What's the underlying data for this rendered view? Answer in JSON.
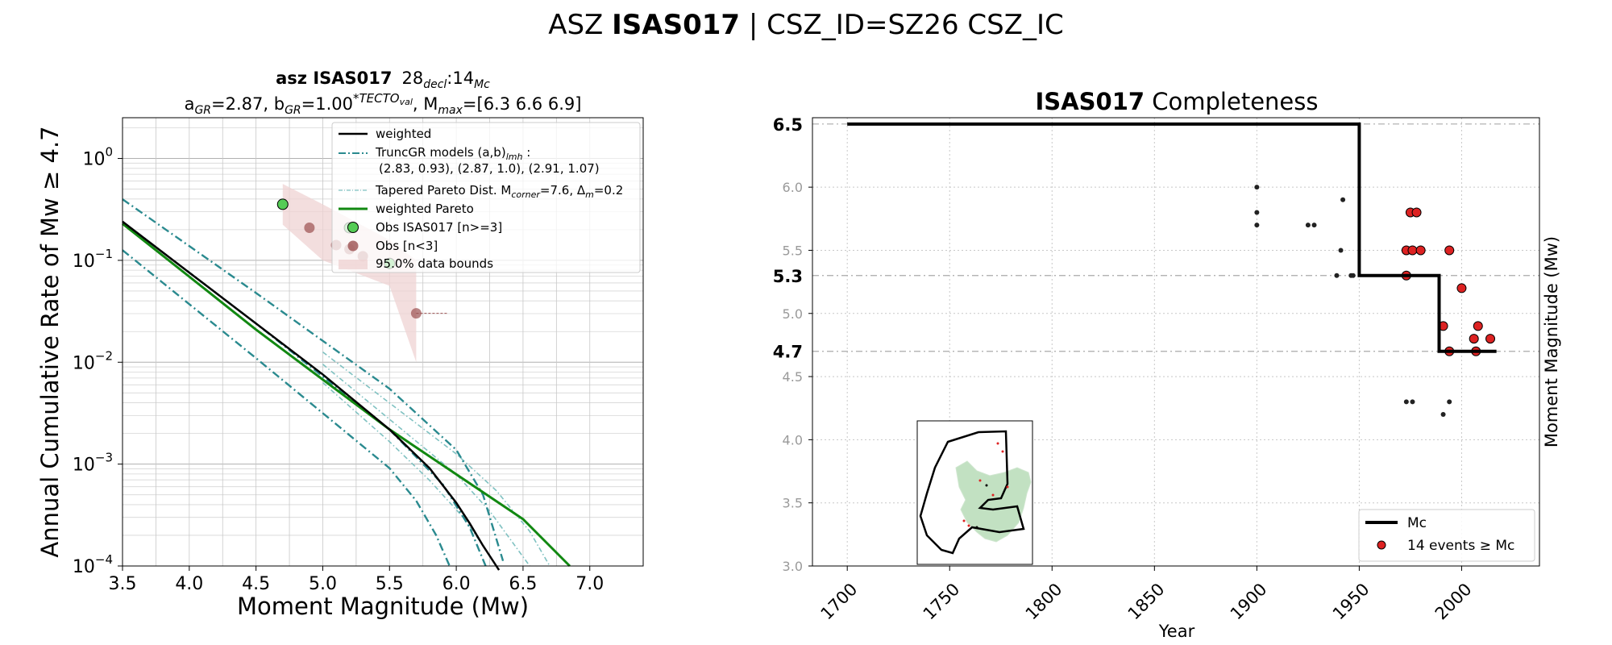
{
  "suptitle": {
    "part1": "ASZ ",
    "bold": "ISAS017",
    "part2": " | CSZ_ID=SZ26 CSZ_IC"
  },
  "chart_data": [
    {
      "type": "line",
      "title_line1_bold": "asz ISAS017",
      "title_line1_rest": "28",
      "title_decl_sub": "decl",
      "title_colon": ":14",
      "title_mc_sub": "Mc",
      "title_line2": {
        "a_pre": "a",
        "a_sub": "GR",
        "a_val": "=2.87,  b",
        "b_sub": "GR",
        "b_val": "=1.00",
        "b_sup": "*TECTO",
        "b_supsub": "val",
        "mmax_pre": ", M",
        "mmax_sub": "max",
        "mmax_val": "=[6.3 6.6 6.9]"
      },
      "xlabel": "Moment Magnitude (Mw)",
      "ylabel": "Annual Cumulative Rate of Mw ≥ 4.7",
      "xlim": [
        3.5,
        7.4
      ],
      "ylim_log10": [
        -4,
        0.4
      ],
      "xticks": [
        "3.5",
        "4.0",
        "4.5",
        "5.0",
        "5.5",
        "6.0",
        "6.5",
        "7.0"
      ],
      "yticks": [
        {
          "base": "10",
          "exp": "−4",
          "v": -4
        },
        {
          "base": "10",
          "exp": "−3",
          "v": -3
        },
        {
          "base": "10",
          "exp": "−2",
          "v": -2
        },
        {
          "base": "10",
          "exp": "−1",
          "v": -1
        },
        {
          "base": "10",
          "exp": "0",
          "v": 0
        }
      ],
      "legend": {
        "placement": "top-right",
        "weighted": "weighted",
        "truncgr_line1": "TruncGR models (a,b)",
        "truncgr_sub": "lmh",
        "truncgr_colon": " :",
        "truncgr_line2": "(2.83, 0.93), (2.87, 1.0), (2.91, 1.07)",
        "tapered": "Tapered Pareto Dist. M",
        "tapered_sub": "corner",
        "tapered_val": "=7.6, Δ",
        "tapered_sub2": "m",
        "tapered_val2": "=0.2",
        "wpareto": "weighted Pareto",
        "obs": "Obs ISAS017 [n>=3]",
        "obs_lt3": "Obs [n<3]",
        "bounds": "95.0% data bounds"
      },
      "weighted_x": [
        3.5,
        4.0,
        4.5,
        5.0,
        5.5,
        5.8,
        6.0,
        6.1,
        6.2,
        6.3,
        6.32
      ],
      "weighted_y_log": [
        -0.62,
        -1.12,
        -1.62,
        -2.12,
        -2.66,
        -3.04,
        -3.38,
        -3.58,
        -3.8,
        -4.0,
        -4.04
      ],
      "pareto_x": [
        3.5,
        4.5,
        5.5,
        6.5,
        6.85
      ],
      "pareto_y_log": [
        -0.64,
        -1.68,
        -2.66,
        -3.54,
        -4.0
      ],
      "truncgr": [
        {
          "x": [
            3.5,
            4.5,
            5.5,
            6.0,
            6.2,
            6.35
          ],
          "y_log": [
            -0.4,
            -1.32,
            -2.26,
            -2.86,
            -3.3,
            -3.95
          ]
        },
        {
          "x": [
            3.5,
            4.5,
            5.5,
            5.9,
            6.1,
            6.22
          ],
          "y_log": [
            -0.62,
            -1.62,
            -2.66,
            -3.2,
            -3.62,
            -4.0
          ]
        },
        {
          "x": [
            3.5,
            4.5,
            5.5,
            5.7,
            5.85,
            5.95
          ],
          "y_log": [
            -0.9,
            -1.96,
            -3.04,
            -3.36,
            -3.7,
            -4.0
          ]
        }
      ],
      "tapered": [
        {
          "x": [
            5.0,
            5.5,
            6.0,
            6.3,
            6.55,
            6.7
          ],
          "y_log": [
            -1.9,
            -2.4,
            -2.9,
            -3.26,
            -3.66,
            -4.0
          ]
        },
        {
          "x": [
            5.0,
            5.5,
            6.0,
            6.25,
            6.45,
            6.55
          ],
          "y_log": [
            -2.02,
            -2.56,
            -3.1,
            -3.46,
            -3.82,
            -4.0
          ]
        },
        {
          "x": [
            5.0,
            5.5,
            5.8,
            6.05,
            6.2,
            6.3
          ],
          "y_log": [
            -2.2,
            -2.78,
            -3.16,
            -3.52,
            -3.8,
            -4.0
          ]
        }
      ],
      "obs_points": [
        {
          "x": 4.7,
          "y_log": -0.45
        },
        {
          "x": 5.2,
          "y_log": -0.68
        },
        {
          "x": 5.5,
          "y_log": -1.03
        }
      ],
      "obs_lt3_points": [
        {
          "x": 4.9,
          "y_log": -0.68
        },
        {
          "x": 5.1,
          "y_log": -0.85
        },
        {
          "x": 5.2,
          "y_log": -0.89
        },
        {
          "x": 5.3,
          "y_log": -0.96
        },
        {
          "x": 5.7,
          "y_log": -1.52
        }
      ],
      "bounds_upper": [
        {
          "x": 4.7,
          "y_log": -0.25
        },
        {
          "x": 5.0,
          "y_log": -0.45
        },
        {
          "x": 5.5,
          "y_log": -0.8
        },
        {
          "x": 5.7,
          "y_log": -1.0
        }
      ],
      "bounds_lower": [
        {
          "x": 5.7,
          "y_log": -2.0
        },
        {
          "x": 5.5,
          "y_log": -1.25
        },
        {
          "x": 5.0,
          "y_log": -1.0
        },
        {
          "x": 4.7,
          "y_log": -0.65
        }
      ]
    },
    {
      "type": "scatter",
      "title_bold": "ISAS017",
      "title_rest": " Completeness",
      "xlabel": "Year",
      "ylabel": "Moment Magnitude (Mw)",
      "xlim": [
        1683,
        2038
      ],
      "ylim": [
        3.0,
        6.55
      ],
      "xticks": [
        1700,
        1750,
        1800,
        1850,
        1900,
        1950,
        2000
      ],
      "yticks": [
        "3.0",
        "3.5",
        "4.0",
        "4.5",
        "5.0",
        "5.5",
        "6.0"
      ],
      "mc_labels": [
        {
          "v": 4.7,
          "label": "4.7"
        },
        {
          "v": 5.3,
          "label": "5.3"
        },
        {
          "v": 6.5,
          "label": "6.5"
        }
      ],
      "mc_step_x": [
        1700,
        1950,
        1950,
        1989,
        1989,
        2017
      ],
      "mc_step_y": [
        6.5,
        6.5,
        5.3,
        5.3,
        4.7,
        4.7
      ],
      "small_points": [
        {
          "x": 1900,
          "y": 6.0
        },
        {
          "x": 1900,
          "y": 5.8
        },
        {
          "x": 1900,
          "y": 5.7
        },
        {
          "x": 1925,
          "y": 5.7
        },
        {
          "x": 1928,
          "y": 5.7
        },
        {
          "x": 1939,
          "y": 5.3
        },
        {
          "x": 1941,
          "y": 5.5
        },
        {
          "x": 1942,
          "y": 5.9
        },
        {
          "x": 1946,
          "y": 5.3
        },
        {
          "x": 1947,
          "y": 5.3
        },
        {
          "x": 1973,
          "y": 4.3
        },
        {
          "x": 1976,
          "y": 4.3
        },
        {
          "x": 1991,
          "y": 4.2
        },
        {
          "x": 1994,
          "y": 4.3
        }
      ],
      "events": [
        {
          "x": 1973,
          "y": 5.3
        },
        {
          "x": 1973,
          "y": 5.5
        },
        {
          "x": 1975,
          "y": 5.8
        },
        {
          "x": 1976,
          "y": 5.5
        },
        {
          "x": 1978,
          "y": 5.8
        },
        {
          "x": 1980,
          "y": 5.5
        },
        {
          "x": 1994,
          "y": 5.5
        },
        {
          "x": 2000,
          "y": 5.2
        },
        {
          "x": 1991,
          "y": 4.9
        },
        {
          "x": 1994,
          "y": 4.7
        },
        {
          "x": 2006,
          "y": 4.8
        },
        {
          "x": 2008,
          "y": 4.9
        },
        {
          "x": 2007,
          "y": 4.7
        },
        {
          "x": 2014,
          "y": 4.8
        }
      ],
      "legend": {
        "placement": "bottom-right",
        "mc": "Mc",
        "events": "14 events ≥ Mc"
      }
    }
  ],
  "colors": {
    "black": "#000000",
    "teal": "#2a8a8f",
    "lightteal": "#7fc1c1",
    "green": "#118811",
    "obsgreen": "#55cc55",
    "obsbrown": "#9b5050",
    "band": "#efd3d3",
    "event_red": "#dd2222",
    "map_green": "#b7dcb7"
  }
}
